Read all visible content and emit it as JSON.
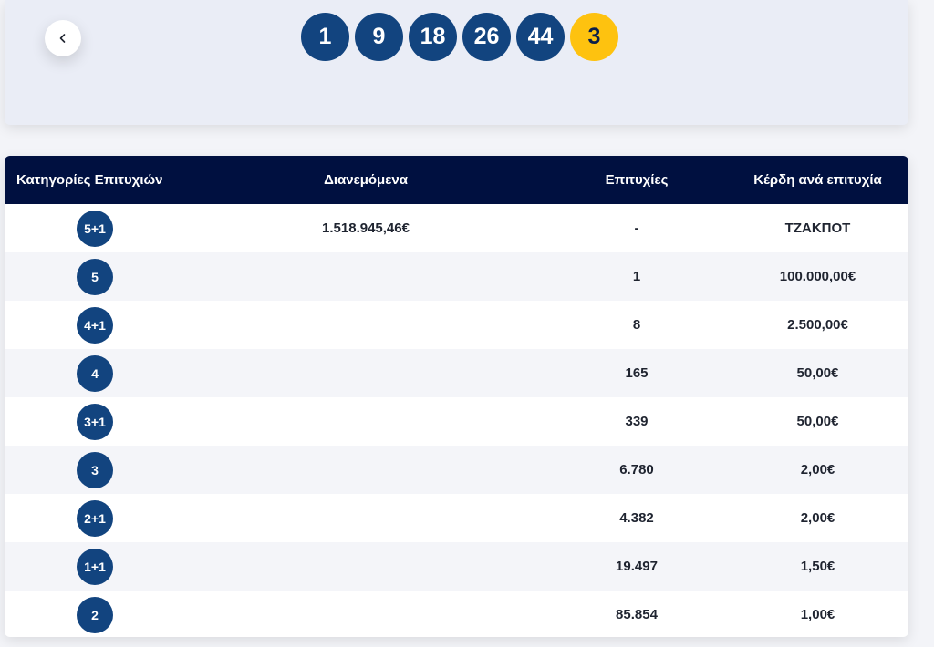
{
  "draw": {
    "numbers": [
      "1",
      "9",
      "18",
      "26",
      "44"
    ],
    "bonus": "3"
  },
  "table": {
    "headers": {
      "category": "Κατηγορίες Επιτυχιών",
      "distributed": "Διανεμόμενα",
      "winners": "Επιτυχίες",
      "prize": "Κέρδη ανά επιτυχία"
    },
    "rows": [
      {
        "category": "5+1",
        "distributed": "1.518.945,46€",
        "winners": "-",
        "prize": "ΤΖΑΚΠΟΤ"
      },
      {
        "category": "5",
        "distributed": "",
        "winners": "1",
        "prize": "100.000,00€"
      },
      {
        "category": "4+1",
        "distributed": "",
        "winners": "8",
        "prize": "2.500,00€"
      },
      {
        "category": "4",
        "distributed": "",
        "winners": "165",
        "prize": "50,00€"
      },
      {
        "category": "3+1",
        "distributed": "",
        "winners": "339",
        "prize": "50,00€"
      },
      {
        "category": "3",
        "distributed": "",
        "winners": "6.780",
        "prize": "2,00€"
      },
      {
        "category": "2+1",
        "distributed": "",
        "winners": "4.382",
        "prize": "2,00€"
      },
      {
        "category": "1+1",
        "distributed": "",
        "winners": "19.497",
        "prize": "1,50€"
      },
      {
        "category": "2",
        "distributed": "",
        "winners": "85.854",
        "prize": "1,00€"
      }
    ]
  },
  "icons": {
    "back": "chevron-left-icon"
  },
  "colors": {
    "ball_blue": "#12447f",
    "ball_bonus": "#fec20f",
    "header_bg": "#001040"
  }
}
